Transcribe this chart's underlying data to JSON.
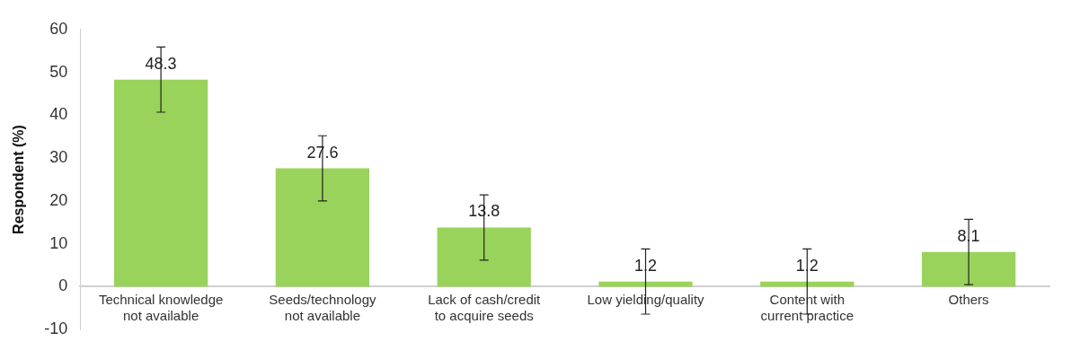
{
  "chart_data": {
    "type": "bar",
    "ylabel": "Respondent (%)",
    "categories": [
      "Technical knowledge not available",
      "Seeds/technology not available",
      "Lack of cash/credit to acquire seeds",
      "Low yielding/quality",
      "Content with current practice",
      "Others"
    ],
    "values": [
      48.3,
      27.6,
      13.8,
      1.2,
      1.2,
      8.1
    ],
    "errors": [
      7.6,
      7.6,
      7.6,
      7.6,
      7.6,
      7.6
    ],
    "color": "#99d35b",
    "ylim": [
      -10,
      60
    ],
    "yticks": [
      -10,
      0,
      10,
      20,
      30,
      40,
      50,
      60
    ],
    "data_labels": true,
    "grid": false,
    "legend": false
  }
}
